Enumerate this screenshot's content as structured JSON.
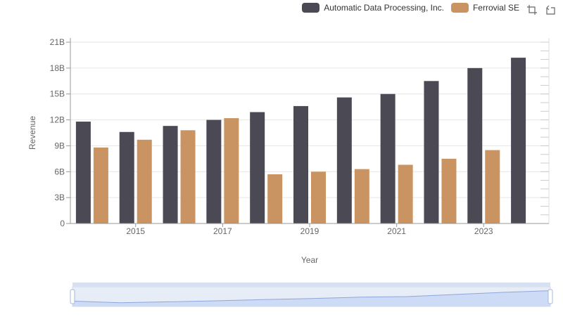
{
  "legend": {
    "items": [
      {
        "label": "Automatic Data Processing, Inc.",
        "color": "#4a4954"
      },
      {
        "label": "Ferrovial SE",
        "color": "#c99461"
      }
    ]
  },
  "toolbox": {
    "icons": [
      "zoom-icon",
      "restore-icon"
    ]
  },
  "chart_data": {
    "type": "bar",
    "xlabel": "Year",
    "ylabel": "Revenue",
    "ylim": [
      0,
      21000000000
    ],
    "yticks": [
      "0",
      "3B",
      "6B",
      "9B",
      "12B",
      "15B",
      "18B",
      "21B"
    ],
    "xticks_shown": [
      "2015",
      "2017",
      "2019",
      "2021",
      "2023"
    ],
    "categories": [
      "2014",
      "2015",
      "2016",
      "2017",
      "2018",
      "2019",
      "2020",
      "2021",
      "2022",
      "2023",
      "2024"
    ],
    "series": [
      {
        "name": "Automatic Data Processing, Inc.",
        "color": "#4a4954",
        "values": [
          11800000000,
          10600000000,
          11300000000,
          12000000000,
          12900000000,
          13600000000,
          14600000000,
          15000000000,
          16500000000,
          18000000000,
          19200000000
        ]
      },
      {
        "name": "Ferrovial SE",
        "color": "#c99461",
        "values": [
          8800000000,
          9700000000,
          10800000000,
          12200000000,
          5700000000,
          6000000000,
          6300000000,
          6800000000,
          7500000000,
          8500000000,
          null
        ]
      }
    ],
    "grid": true,
    "legend_position": "top-right",
    "has_data_zoom_slider": true
  }
}
